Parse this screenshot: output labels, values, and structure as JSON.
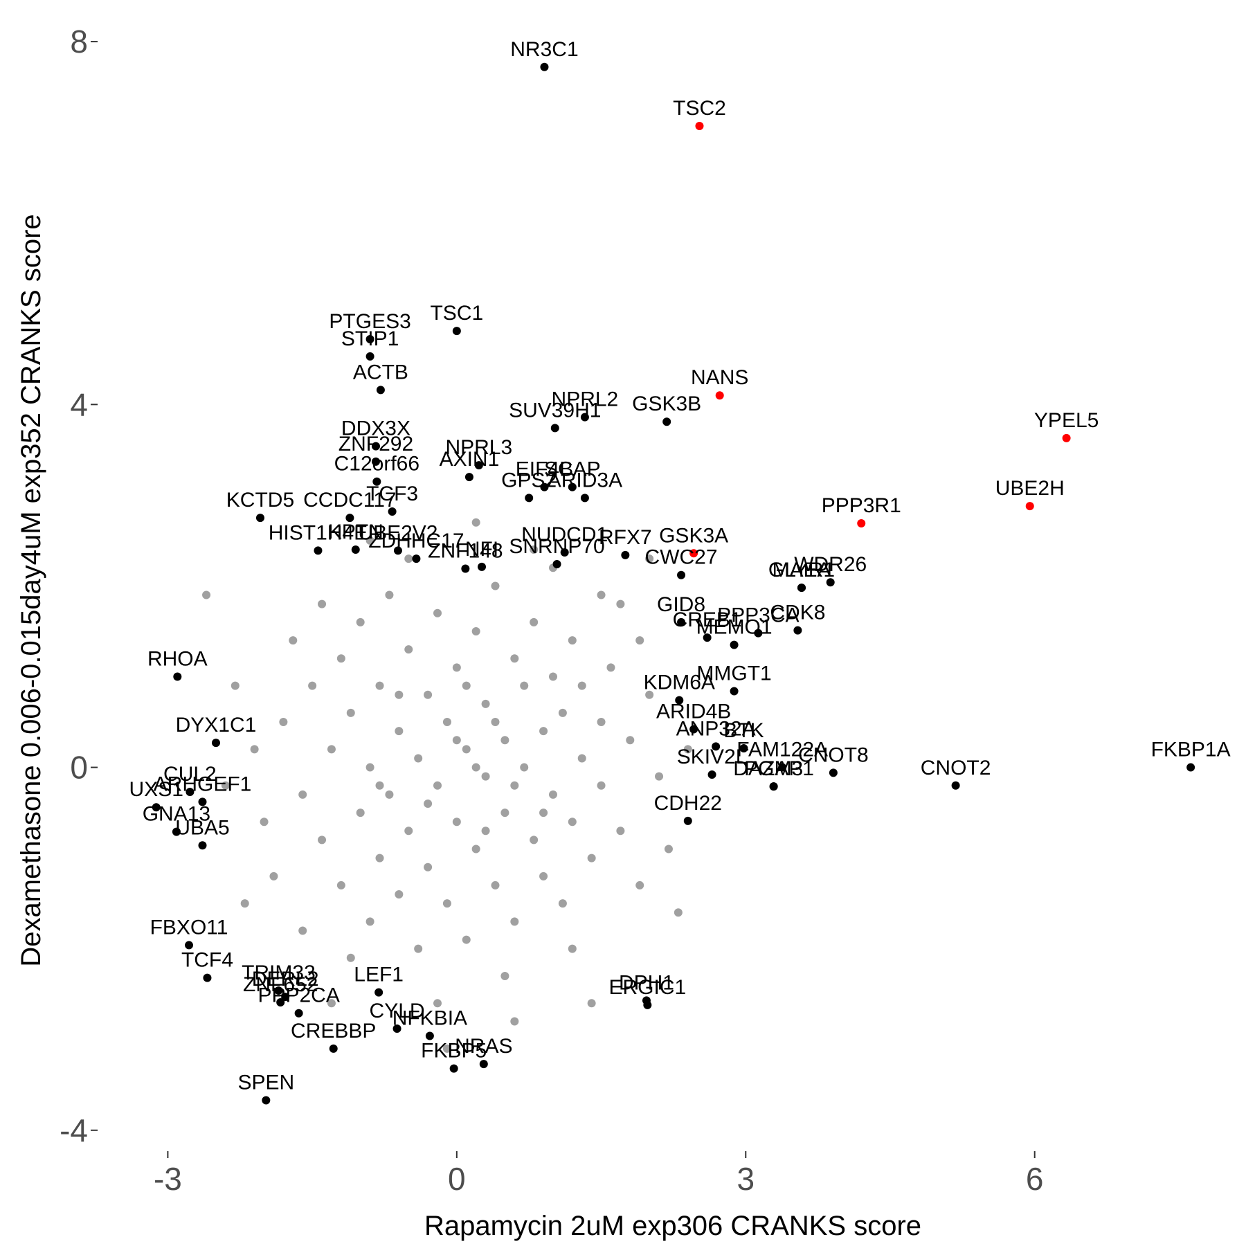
{
  "chart_data": {
    "type": "scatter",
    "x_label": "Rapamycin 2uM exp306 CRANKS score",
    "y_label": "Dexamethasone 0.006-0.015day4uM exp352 CRANKS score",
    "xlim": [
      -3.7,
      8.0
    ],
    "ylim": [
      -4.2,
      8.1
    ],
    "xticks": [
      -3,
      0,
      3,
      6
    ],
    "yticks": [
      -4,
      0,
      4,
      8
    ],
    "grid": false,
    "series": [
      {
        "color": "#a0a0a0",
        "x": [
          -1.8,
          -1.6,
          -1.5,
          -1.4,
          -1.3,
          -1.2,
          -1.2,
          -1.1,
          -1.0,
          -1.0,
          -0.9,
          -0.9,
          -0.8,
          -0.8,
          -0.7,
          -0.7,
          -0.6,
          -0.6,
          -0.5,
          -0.5,
          -0.4,
          -0.4,
          -0.3,
          -0.3,
          -0.2,
          -0.2,
          -0.1,
          -0.1,
          0.0,
          0.0,
          0.1,
          0.1,
          0.2,
          0.2,
          0.3,
          0.3,
          0.4,
          0.4,
          0.5,
          0.5,
          0.6,
          0.6,
          0.7,
          0.7,
          0.8,
          0.8,
          0.9,
          0.9,
          1.0,
          1.0,
          1.1,
          1.1,
          1.2,
          1.2,
          1.3,
          1.3,
          1.4,
          1.5,
          1.5,
          1.6,
          1.7,
          1.8,
          1.9,
          2.0,
          2.1,
          2.2,
          1.7,
          -1.7,
          -2.0,
          -2.1,
          -1.9,
          -1.4,
          -1.1,
          0.5,
          -0.2,
          1.2,
          1.0,
          -0.5,
          0.8,
          1.5,
          -1.6,
          -2.3,
          -2.2,
          2.4,
          2.3,
          -0.9,
          0.2,
          -2.4,
          1.9,
          -0.1,
          1.4,
          -1.3,
          0.6,
          -2.6,
          2.0,
          0.2,
          0.4,
          -0.3,
          0.6,
          0.1,
          -0.6,
          0.9,
          -0.8,
          0.3,
          0.0
        ],
        "values": [
          0.5,
          -0.3,
          0.9,
          -0.8,
          0.2,
          1.2,
          -1.3,
          0.6,
          -0.5,
          1.6,
          0.0,
          -1.7,
          0.9,
          -1.0,
          1.9,
          -0.3,
          0.4,
          -1.4,
          1.3,
          -0.7,
          0.1,
          -2.0,
          0.8,
          -1.1,
          1.7,
          -0.2,
          0.5,
          -1.5,
          1.1,
          -0.6,
          0.2,
          -1.9,
          1.5,
          -0.9,
          0.7,
          -0.1,
          2.0,
          -1.3,
          0.3,
          -0.5,
          1.2,
          -1.7,
          0.0,
          0.9,
          -0.8,
          1.6,
          0.4,
          -1.2,
          1.0,
          -0.3,
          0.6,
          -1.5,
          1.4,
          -0.6,
          0.1,
          0.9,
          -1.0,
          0.5,
          -0.2,
          1.1,
          -0.7,
          0.3,
          -1.3,
          0.8,
          -0.1,
          -0.9,
          1.8,
          1.4,
          -0.6,
          0.2,
          -1.2,
          1.8,
          -2.1,
          -2.3,
          -2.6,
          -2.0,
          2.2,
          2.3,
          2.4,
          1.9,
          -1.8,
          0.9,
          -1.5,
          0.2,
          -1.6,
          2.5,
          2.7,
          -0.2,
          1.4,
          -3.1,
          -2.6,
          -2.6,
          -2.8,
          1.9,
          2.3,
          0.0,
          0.5,
          -0.4,
          -0.2,
          0.9,
          0.8,
          -0.5,
          -0.2,
          -0.7,
          0.3
        ]
      },
      {
        "color": "#000000",
        "labels": [
          "NR3C1",
          "TSC1",
          "PTGES3",
          "STIP1",
          "ACTB",
          "DDX3X",
          "ZNF292",
          "C12orf66",
          "TCF3",
          "SUV39H1",
          "NPRL3",
          "AXIN1",
          "NPRL2",
          "GSK3B",
          "SCAP",
          "EIF4B",
          "ARID3A",
          "GPS2",
          "RFX7",
          "NUDCD1",
          "KCTD5",
          "CCDC117",
          "HIST1H4E",
          "KPTN",
          "NFI",
          "SNRNP70",
          "ZNF148",
          "ZDHHC17",
          "UBE2V2",
          "CWC27",
          "GLYR1",
          "WDR26",
          "MAEA",
          "CDK8",
          "PPP3CA",
          "CREB1",
          "MEMO1",
          "GID8",
          "KDM6A",
          "MMGT1",
          "ARID4B",
          "BTK",
          "ANP32A",
          "FAM122A",
          "CNOT8",
          "CNOT2",
          "FKBP1A",
          "SKIV2L",
          "PGM3",
          "CDH22",
          "DAZAP1",
          "RHOA",
          "DYX1C1",
          "CUL2",
          "ARHGEF1",
          "UXS1",
          "GNA13",
          "UBA5",
          "FBXO11",
          "TCF4",
          "TRIM33",
          "DERL2",
          "ZNF652",
          "PPP2CA",
          "SPEN",
          "LEF1",
          "CYLD",
          "CREBBP",
          "NFKBIA",
          "NRAS",
          "FKBP5",
          "DPH1",
          "ERGIC1"
        ],
        "x": [
          0.91,
          0.0,
          -0.9,
          -0.9,
          -0.79,
          -0.84,
          -0.84,
          -0.83,
          -0.67,
          1.02,
          0.23,
          0.13,
          1.33,
          2.18,
          1.2,
          0.91,
          1.33,
          0.75,
          1.75,
          1.12,
          -2.04,
          -1.11,
          -1.44,
          -1.05,
          0.26,
          1.04,
          0.09,
          -0.42,
          -0.61,
          2.33,
          3.58,
          3.88,
          3.58,
          3.54,
          3.13,
          2.6,
          2.88,
          2.33,
          2.31,
          2.88,
          2.46,
          2.98,
          2.69,
          3.38,
          3.91,
          5.18,
          7.62,
          2.65,
          3.29,
          2.4,
          3.29,
          -2.9,
          -2.5,
          -2.77,
          -2.64,
          -3.12,
          -2.91,
          -2.64,
          -2.78,
          -2.59,
          -1.85,
          -1.78,
          -1.83,
          -1.64,
          -1.98,
          -0.81,
          -0.62,
          -1.28,
          -0.28,
          0.28,
          -0.03,
          1.97,
          1.98
        ],
        "values": [
          7.72,
          4.81,
          4.72,
          4.53,
          4.16,
          3.54,
          3.37,
          3.15,
          2.82,
          3.74,
          3.33,
          3.2,
          3.86,
          3.81,
          3.09,
          3.09,
          2.97,
          2.97,
          2.34,
          2.37,
          2.75,
          2.75,
          2.39,
          2.4,
          2.21,
          2.24,
          2.19,
          2.3,
          2.39,
          2.12,
          1.98,
          2.04,
          1.98,
          1.51,
          1.48,
          1.43,
          1.35,
          1.6,
          0.74,
          0.84,
          0.42,
          0.21,
          0.23,
          0.0,
          -0.06,
          -0.2,
          0.0,
          -0.08,
          -0.21,
          -0.59,
          -0.21,
          1.0,
          0.27,
          -0.27,
          -0.38,
          -0.44,
          -0.71,
          -0.86,
          -1.96,
          -2.32,
          -2.46,
          -2.53,
          -2.59,
          -2.71,
          -3.67,
          -2.48,
          -2.88,
          -3.1,
          -2.96,
          -3.27,
          -3.32,
          -2.57,
          -2.62
        ]
      },
      {
        "color": "#ff0000",
        "labels": [
          "TSC2",
          "NANS",
          "YPEL5",
          "UBE2H",
          "PPP3R1",
          "GSK3A"
        ],
        "x": [
          2.52,
          2.73,
          6.33,
          5.95,
          4.2,
          2.46
        ],
        "values": [
          7.07,
          4.1,
          3.63,
          2.88,
          2.69,
          2.36
        ]
      }
    ]
  }
}
